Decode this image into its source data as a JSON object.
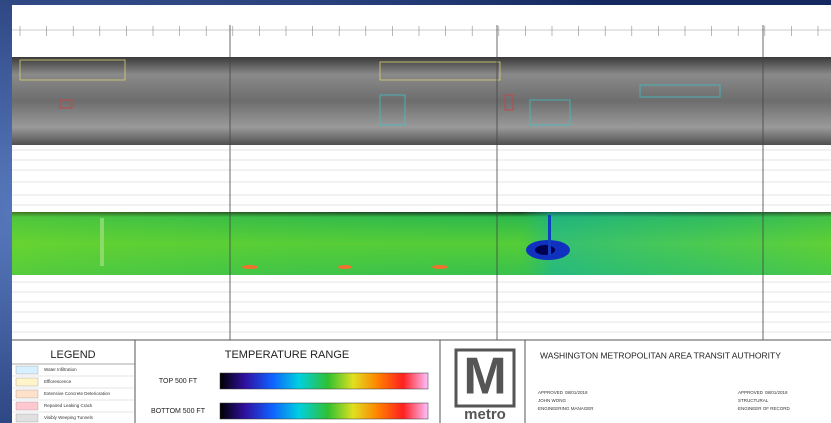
{
  "legend": {
    "title": "LEGEND",
    "items": [
      "Water Infiltration",
      "Efflorescence",
      "Extensive Concrete Deterioration",
      "Repaired Leaking Crack",
      "Visibly Weeping Tunnels"
    ]
  },
  "temperature": {
    "title": "TEMPERATURE RANGE",
    "rows": [
      "TOP 500 FT",
      "BOTTOM 500 FT"
    ]
  },
  "logo": {
    "letter": "M",
    "word": "metro"
  },
  "title_block": {
    "authority": "WASHINGTON METROPOLITAN AREA TRANSIT AUTHORITY",
    "left": {
      "approved": "APPROVED",
      "date": "08/01/2018",
      "name": "JOHN WONG",
      "role": "ENGINEERING MANAGER"
    },
    "right": {
      "approved": "APPROVED",
      "date": "08/01/2018",
      "name": "STRUCTURAL",
      "role": "ENGINEER OF RECORD"
    }
  }
}
